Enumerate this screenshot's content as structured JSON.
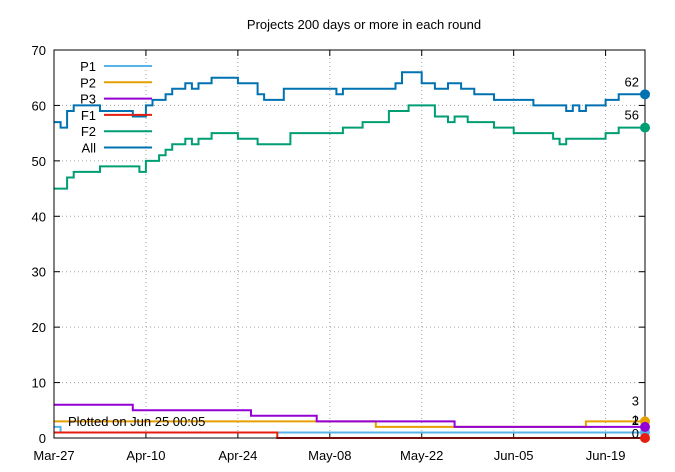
{
  "chart_data": {
    "type": "line",
    "step": true,
    "title": "Projects 200 days or more in each round",
    "xlabel": "",
    "ylabel": "",
    "x_range": [
      "2026-03-27",
      "2026-06-25"
    ],
    "ylim": [
      0,
      70
    ],
    "x_ticks": [
      {
        "date": "2026-03-27",
        "label": "Mar-27"
      },
      {
        "date": "2026-04-10",
        "label": "Apr-10"
      },
      {
        "date": "2026-04-24",
        "label": "Apr-24"
      },
      {
        "date": "2026-05-08",
        "label": "May-08"
      },
      {
        "date": "2026-05-22",
        "label": "May-22"
      },
      {
        "date": "2026-06-05",
        "label": "Jun-05"
      },
      {
        "date": "2026-06-19",
        "label": "Jun-19"
      }
    ],
    "y_ticks": [
      0,
      10,
      20,
      30,
      40,
      50,
      60,
      70
    ],
    "grid": true,
    "legend_position": "top-left",
    "annotation": "Plotted on Jun 25 00:05",
    "series": [
      {
        "name": "P1",
        "color": "#56b4e9",
        "end_label": "1",
        "points": [
          [
            "2026-03-27",
            2
          ],
          [
            "2026-03-28",
            1
          ],
          [
            "2026-06-25",
            1
          ]
        ]
      },
      {
        "name": "P2",
        "color": "#e69f00",
        "end_label": "3",
        "points": [
          [
            "2026-03-27",
            3
          ],
          [
            "2026-05-15",
            2
          ],
          [
            "2026-06-16",
            3
          ],
          [
            "2026-06-25",
            3
          ]
        ]
      },
      {
        "name": "P3",
        "color": "#9400d3",
        "end_label": "2",
        "points": [
          [
            "2026-03-27",
            6
          ],
          [
            "2026-04-08",
            5
          ],
          [
            "2026-04-26",
            4
          ],
          [
            "2026-05-06",
            3
          ],
          [
            "2026-05-27",
            2
          ],
          [
            "2026-06-25",
            2
          ]
        ]
      },
      {
        "name": "F1",
        "color": "#e51e10",
        "end_label": "0",
        "points": [
          [
            "2026-03-27",
            1
          ],
          [
            "2026-04-30",
            0
          ],
          [
            "2026-06-25",
            0
          ]
        ]
      },
      {
        "name": "F2",
        "color": "#009e73",
        "end_label": "56",
        "points": [
          [
            "2026-03-27",
            45
          ],
          [
            "2026-03-29",
            47
          ],
          [
            "2026-03-30",
            48
          ],
          [
            "2026-04-01",
            48
          ],
          [
            "2026-04-03",
            49
          ],
          [
            "2026-04-09",
            48
          ],
          [
            "2026-04-10",
            50
          ],
          [
            "2026-04-12",
            51
          ],
          [
            "2026-04-13",
            52
          ],
          [
            "2026-04-14",
            53
          ],
          [
            "2026-04-16",
            54
          ],
          [
            "2026-04-17",
            53
          ],
          [
            "2026-04-18",
            54
          ],
          [
            "2026-04-20",
            55
          ],
          [
            "2026-04-24",
            54
          ],
          [
            "2026-04-27",
            53
          ],
          [
            "2026-05-02",
            55
          ],
          [
            "2026-05-10",
            56
          ],
          [
            "2026-05-13",
            57
          ],
          [
            "2026-05-17",
            59
          ],
          [
            "2026-05-20",
            60
          ],
          [
            "2026-05-24",
            58
          ],
          [
            "2026-05-26",
            57
          ],
          [
            "2026-05-27",
            58
          ],
          [
            "2026-05-29",
            57
          ],
          [
            "2026-06-02",
            56
          ],
          [
            "2026-06-05",
            55
          ],
          [
            "2026-06-11",
            54
          ],
          [
            "2026-06-12",
            53
          ],
          [
            "2026-06-13",
            54
          ],
          [
            "2026-06-19",
            55
          ],
          [
            "2026-06-21",
            56
          ],
          [
            "2026-06-25",
            56
          ]
        ]
      },
      {
        "name": "All",
        "color": "#0072b2",
        "end_label": "62",
        "points": [
          [
            "2026-03-27",
            57
          ],
          [
            "2026-03-28",
            56
          ],
          [
            "2026-03-29",
            59
          ],
          [
            "2026-03-30",
            60
          ],
          [
            "2026-04-02",
            60
          ],
          [
            "2026-04-03",
            59
          ],
          [
            "2026-04-08",
            58
          ],
          [
            "2026-04-10",
            60
          ],
          [
            "2026-04-11",
            61
          ],
          [
            "2026-04-13",
            62
          ],
          [
            "2026-04-14",
            63
          ],
          [
            "2026-04-16",
            64
          ],
          [
            "2026-04-17",
            63
          ],
          [
            "2026-04-18",
            64
          ],
          [
            "2026-04-20",
            65
          ],
          [
            "2026-04-24",
            64
          ],
          [
            "2026-04-27",
            62
          ],
          [
            "2026-04-28",
            61
          ],
          [
            "2026-05-01",
            63
          ],
          [
            "2026-05-09",
            62
          ],
          [
            "2026-05-10",
            63
          ],
          [
            "2026-05-18",
            64
          ],
          [
            "2026-05-19",
            66
          ],
          [
            "2026-05-22",
            64
          ],
          [
            "2026-05-24",
            63
          ],
          [
            "2026-05-26",
            64
          ],
          [
            "2026-05-28",
            63
          ],
          [
            "2026-05-30",
            62
          ],
          [
            "2026-06-02",
            61
          ],
          [
            "2026-06-08",
            60
          ],
          [
            "2026-06-13",
            59
          ],
          [
            "2026-06-14",
            60
          ],
          [
            "2026-06-15",
            59
          ],
          [
            "2026-06-16",
            60
          ],
          [
            "2026-06-19",
            61
          ],
          [
            "2026-06-21",
            62
          ],
          [
            "2026-06-25",
            62
          ]
        ]
      }
    ]
  }
}
